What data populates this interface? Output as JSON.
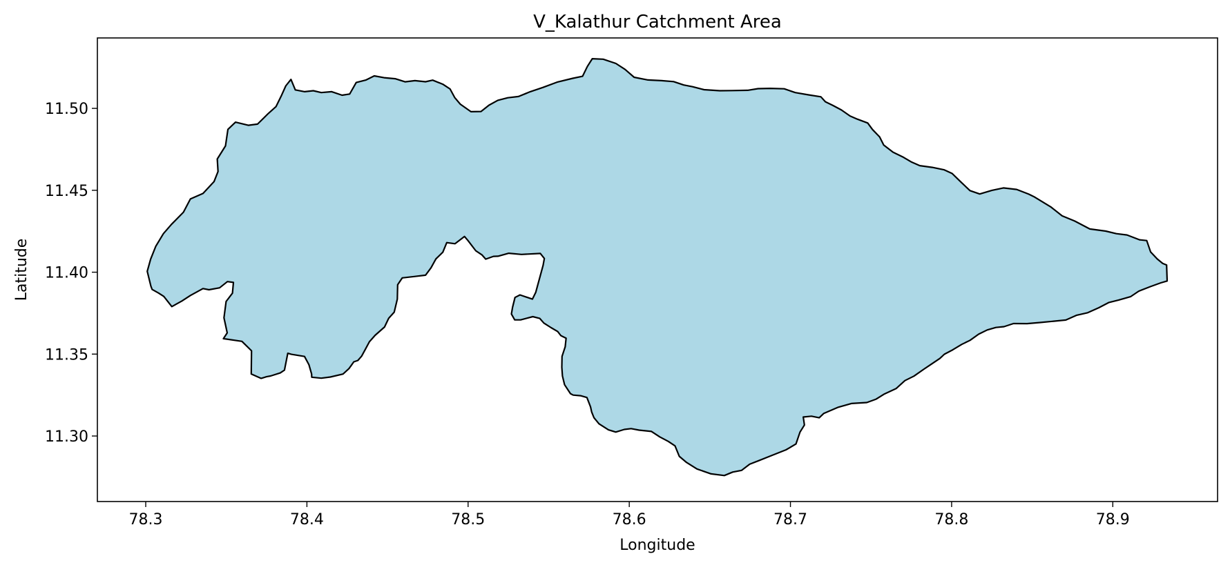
{
  "chart_data": {
    "type": "map",
    "title": "V_Kalathur Catchment Area",
    "xlabel": "Longitude",
    "ylabel": "Latitude",
    "xlim": [
      78.27,
      78.965
    ],
    "ylim": [
      11.26,
      11.543
    ],
    "x_ticks": [
      78.3,
      78.4,
      78.5,
      78.6,
      78.7,
      78.8,
      78.9
    ],
    "x_tick_labels": [
      "78.3",
      "78.4",
      "78.5",
      "78.6",
      "78.7",
      "78.8",
      "78.9"
    ],
    "y_ticks": [
      11.3,
      11.35,
      11.4,
      11.45,
      11.5
    ],
    "y_tick_labels": [
      "11.30",
      "11.35",
      "11.40",
      "11.45",
      "11.50"
    ],
    "grid": false,
    "legend": "none",
    "fill_color": "#add8e6",
    "edge_color": "#000000",
    "boundary": [
      [
        78.3,
        11.386
      ],
      [
        78.303,
        11.398
      ],
      [
        78.307,
        11.405
      ],
      [
        78.312,
        11.414
      ],
      [
        78.318,
        11.426
      ],
      [
        78.324,
        11.433
      ],
      [
        78.33,
        11.437
      ],
      [
        78.34,
        11.44
      ],
      [
        78.345,
        11.448
      ],
      [
        78.34,
        11.46
      ],
      [
        78.343,
        11.472
      ],
      [
        78.345,
        11.48
      ],
      [
        78.358,
        11.485
      ],
      [
        78.365,
        11.489
      ],
      [
        78.375,
        11.493
      ],
      [
        78.382,
        11.504
      ],
      [
        78.39,
        11.513
      ],
      [
        78.395,
        11.507
      ],
      [
        78.41,
        11.506
      ],
      [
        78.425,
        11.505
      ],
      [
        78.437,
        11.5
      ],
      [
        78.445,
        11.51
      ],
      [
        78.46,
        11.511
      ],
      [
        78.475,
        11.509
      ],
      [
        78.485,
        11.511
      ],
      [
        78.49,
        11.505
      ],
      [
        78.5,
        11.497
      ],
      [
        78.512,
        11.5
      ],
      [
        78.525,
        11.495
      ],
      [
        78.54,
        11.498
      ],
      [
        78.553,
        11.503
      ],
      [
        78.562,
        11.511
      ],
      [
        78.568,
        11.518
      ],
      [
        78.575,
        11.524
      ],
      [
        78.585,
        11.523
      ],
      [
        78.595,
        11.515
      ],
      [
        78.608,
        11.513
      ],
      [
        78.62,
        11.51
      ],
      [
        78.632,
        11.505
      ],
      [
        78.643,
        11.505
      ],
      [
        78.655,
        11.502
      ],
      [
        78.67,
        11.501
      ],
      [
        78.685,
        11.499
      ],
      [
        78.7,
        11.498
      ],
      [
        78.712,
        11.493
      ],
      [
        78.725,
        11.485
      ],
      [
        78.733,
        11.482
      ],
      [
        78.742,
        11.478
      ],
      [
        78.75,
        11.467
      ],
      [
        78.76,
        11.463
      ],
      [
        78.768,
        11.46
      ],
      [
        78.775,
        11.455
      ],
      [
        78.787,
        11.451
      ],
      [
        78.795,
        11.449
      ],
      [
        78.803,
        11.446
      ],
      [
        78.812,
        11.444
      ],
      [
        78.825,
        11.44
      ],
      [
        78.838,
        11.435
      ],
      [
        78.85,
        11.428
      ],
      [
        78.865,
        11.422
      ],
      [
        78.88,
        11.419
      ],
      [
        78.895,
        11.415
      ],
      [
        78.905,
        11.412
      ],
      [
        78.917,
        11.406
      ],
      [
        78.925,
        11.401
      ],
      [
        78.931,
        11.4
      ],
      [
        78.93,
        11.392
      ],
      [
        78.918,
        11.386
      ],
      [
        78.9,
        11.378
      ],
      [
        78.885,
        11.372
      ],
      [
        78.87,
        11.366
      ],
      [
        78.855,
        11.366
      ],
      [
        78.84,
        11.366
      ],
      [
        78.825,
        11.364
      ],
      [
        78.81,
        11.362
      ],
      [
        78.8,
        11.358
      ],
      [
        78.79,
        11.35
      ],
      [
        78.78,
        11.345
      ],
      [
        78.77,
        11.336
      ],
      [
        78.755,
        11.325
      ],
      [
        78.745,
        11.318
      ],
      [
        78.73,
        11.313
      ],
      [
        78.72,
        11.307
      ],
      [
        78.71,
        11.305
      ],
      [
        78.705,
        11.3
      ],
      [
        78.695,
        11.29
      ],
      [
        78.685,
        11.283
      ],
      [
        78.675,
        11.28
      ],
      [
        78.665,
        11.272
      ],
      [
        78.65,
        11.271
      ],
      [
        78.635,
        11.273
      ],
      [
        78.625,
        11.279
      ],
      [
        78.615,
        11.288
      ],
      [
        78.6,
        11.298
      ],
      [
        78.585,
        11.3
      ],
      [
        78.575,
        11.298
      ],
      [
        78.565,
        11.295
      ],
      [
        78.555,
        11.299
      ],
      [
        78.55,
        11.31
      ],
      [
        78.54,
        11.32
      ],
      [
        78.53,
        11.328
      ],
      [
        78.525,
        11.34
      ],
      [
        78.52,
        11.354
      ],
      [
        78.51,
        11.366
      ],
      [
        78.495,
        11.37
      ],
      [
        78.485,
        11.372
      ],
      [
        78.475,
        11.375
      ],
      [
        78.465,
        11.38
      ],
      [
        78.455,
        11.388
      ],
      [
        78.448,
        11.394
      ],
      [
        78.435,
        11.395
      ],
      [
        78.42,
        11.392
      ],
      [
        78.412,
        11.385
      ],
      [
        78.405,
        11.378
      ],
      [
        78.392,
        11.37
      ],
      [
        78.38,
        11.368
      ],
      [
        78.372,
        11.375
      ],
      [
        78.368,
        11.382
      ],
      [
        78.368,
        11.388
      ],
      [
        78.365,
        11.392
      ],
      [
        78.355,
        11.392
      ],
      [
        78.343,
        11.387
      ],
      [
        78.33,
        11.383
      ],
      [
        78.318,
        11.38
      ],
      [
        78.308,
        11.378
      ],
      [
        78.302,
        11.381
      ]
    ],
    "boundary_note": "hole-free outline drawn below from the traced path"
  }
}
